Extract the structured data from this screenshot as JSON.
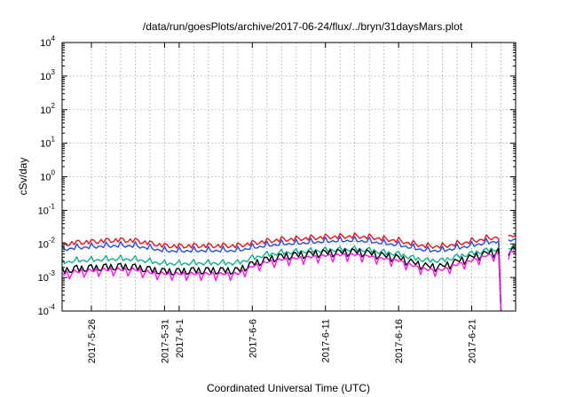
{
  "chart_data": {
    "type": "line",
    "title": "/data/run/goesPlots/archive/2017-06-24/flux/../bryn/31daysMars.plot",
    "xlabel": "Coordinated Universal Time (UTC)",
    "ylabel": "cSv/day",
    "yscale": "log",
    "ylim": [
      0.0001,
      10000
    ],
    "xlim": [
      "2017-05-24",
      "2017-06-24"
    ],
    "grid": true,
    "y_ticks": [
      {
        "value": 10000,
        "base": "10",
        "exp": "4"
      },
      {
        "value": 1000,
        "base": "10",
        "exp": "3"
      },
      {
        "value": 100,
        "base": "10",
        "exp": "2"
      },
      {
        "value": 10,
        "base": "10",
        "exp": "1"
      },
      {
        "value": 1,
        "base": "10",
        "exp": "0"
      },
      {
        "value": 0.1,
        "base": "10",
        "exp": "-1"
      },
      {
        "value": 0.01,
        "base": "10",
        "exp": "-2"
      },
      {
        "value": 0.001,
        "base": "10",
        "exp": "-3"
      },
      {
        "value": 0.0001,
        "base": "10",
        "exp": "-4"
      }
    ],
    "x_ticks": [
      {
        "date": "2017-05-26",
        "label": "2017-5-26"
      },
      {
        "date": "2017-05-31",
        "label": "2017-5-31"
      },
      {
        "date": "2017-06-01",
        "label": "2017-6-1"
      },
      {
        "date": "2017-06-06",
        "label": "2017-6-6"
      },
      {
        "date": "2017-06-11",
        "label": "2017-6-11"
      },
      {
        "date": "2017-06-16",
        "label": "2017-6-16"
      },
      {
        "date": "2017-06-21",
        "label": "2017-6-21"
      }
    ],
    "x_gridlines": [
      "2017-05-26",
      "2017-05-27",
      "2017-05-28",
      "2017-05-29",
      "2017-05-30",
      "2017-05-31",
      "2017-06-01",
      "2017-06-02",
      "2017-06-03",
      "2017-06-04",
      "2017-06-05",
      "2017-06-06",
      "2017-06-07",
      "2017-06-08",
      "2017-06-09",
      "2017-06-10",
      "2017-06-11",
      "2017-06-12",
      "2017-06-13",
      "2017-06-14",
      "2017-06-15",
      "2017-06-16",
      "2017-06-17",
      "2017-06-18",
      "2017-06-19",
      "2017-06-20",
      "2017-06-21",
      "2017-06-22",
      "2017-06-23"
    ],
    "series": [
      {
        "color": "#e8141c",
        "x": [
          "2017-05-24",
          "2017-05-25",
          "2017-05-26",
          "2017-05-27",
          "2017-05-28",
          "2017-05-29",
          "2017-05-30",
          "2017-05-31",
          "2017-06-01",
          "2017-06-02",
          "2017-06-03",
          "2017-06-04",
          "2017-06-05",
          "2017-06-06",
          "2017-06-07",
          "2017-06-08",
          "2017-06-09",
          "2017-06-10",
          "2017-06-11",
          "2017-06-12",
          "2017-06-13",
          "2017-06-14",
          "2017-06-15",
          "2017-06-16",
          "2017-06-17",
          "2017-06-18",
          "2017-06-19",
          "2017-06-20",
          "2017-06-21",
          "2017-06-22",
          "2017-06-23",
          "2017-06-24"
        ],
        "y": [
          0.0095,
          0.011,
          0.0115,
          0.0125,
          0.013,
          0.0125,
          0.0105,
          0.0088,
          0.0085,
          0.0088,
          0.0088,
          0.0088,
          0.0088,
          0.0105,
          0.012,
          0.0135,
          0.014,
          0.015,
          0.016,
          0.0165,
          0.017,
          0.016,
          0.014,
          0.0125,
          0.01,
          0.0085,
          0.0085,
          0.01,
          0.012,
          0.0145,
          0.0165,
          0.0185
        ]
      },
      {
        "color": "#1f4fe0",
        "x": [
          "2017-05-24",
          "2017-05-25",
          "2017-05-26",
          "2017-05-27",
          "2017-05-28",
          "2017-05-29",
          "2017-05-30",
          "2017-05-31",
          "2017-06-01",
          "2017-06-02",
          "2017-06-03",
          "2017-06-04",
          "2017-06-05",
          "2017-06-06",
          "2017-06-07",
          "2017-06-08",
          "2017-06-09",
          "2017-06-10",
          "2017-06-11",
          "2017-06-12",
          "2017-06-13",
          "2017-06-14",
          "2017-06-15",
          "2017-06-16",
          "2017-06-17",
          "2017-06-18",
          "2017-06-19",
          "2017-06-20",
          "2017-06-21",
          "2017-06-22",
          "2017-06-23",
          "2017-06-24"
        ],
        "y": [
          0.0068,
          0.0078,
          0.0082,
          0.0088,
          0.009,
          0.0088,
          0.0075,
          0.0063,
          0.0062,
          0.0064,
          0.0064,
          0.0064,
          0.0064,
          0.0078,
          0.009,
          0.01,
          0.0105,
          0.0112,
          0.012,
          0.0125,
          0.0128,
          0.012,
          0.0105,
          0.0094,
          0.0076,
          0.0064,
          0.0064,
          0.0076,
          0.009,
          0.011,
          0.0125,
          0.014
        ]
      },
      {
        "color": "#10b090",
        "x": [
          "2017-05-24",
          "2017-05-25",
          "2017-05-26",
          "2017-05-27",
          "2017-05-28",
          "2017-05-29",
          "2017-05-30",
          "2017-05-31",
          "2017-06-01",
          "2017-06-02",
          "2017-06-03",
          "2017-06-04",
          "2017-06-05",
          "2017-06-06",
          "2017-06-07",
          "2017-06-08",
          "2017-06-09",
          "2017-06-10",
          "2017-06-11",
          "2017-06-12",
          "2017-06-13",
          "2017-06-14",
          "2017-06-15",
          "2017-06-16",
          "2017-06-17",
          "2017-06-18",
          "2017-06-19",
          "2017-06-20",
          "2017-06-21",
          "2017-06-22",
          "2017-06-23",
          "2017-06-24"
        ],
        "y": [
          0.0028,
          0.0032,
          0.0033,
          0.0035,
          0.0036,
          0.0035,
          0.003,
          0.0026,
          0.0026,
          0.0027,
          0.0027,
          0.0027,
          0.0027,
          0.0038,
          0.0048,
          0.0055,
          0.0058,
          0.0062,
          0.0066,
          0.0068,
          0.007,
          0.0065,
          0.0056,
          0.005,
          0.0038,
          0.0032,
          0.0032,
          0.0042,
          0.0052,
          0.0064,
          0.0074,
          0.0085
        ]
      },
      {
        "color": "#000000",
        "x": [
          "2017-05-24",
          "2017-05-25",
          "2017-05-26",
          "2017-05-27",
          "2017-05-28",
          "2017-05-29",
          "2017-05-30",
          "2017-05-31",
          "2017-06-01",
          "2017-06-02",
          "2017-06-03",
          "2017-06-04",
          "2017-06-05",
          "2017-06-06",
          "2017-06-07",
          "2017-06-08",
          "2017-06-09",
          "2017-06-10",
          "2017-06-11",
          "2017-06-12",
          "2017-06-13",
          "2017-06-14",
          "2017-06-15",
          "2017-06-16",
          "2017-06-17",
          "2017-06-18",
          "2017-06-19",
          "2017-06-20",
          "2017-06-21",
          "2017-06-22",
          "2017-06-23",
          "2017-06-24"
        ],
        "y": [
          0.0016,
          0.0018,
          0.0019,
          0.002,
          0.0021,
          0.002,
          0.0017,
          0.0015,
          0.0015,
          0.0016,
          0.0016,
          0.0016,
          0.0016,
          0.0025,
          0.0034,
          0.0042,
          0.0046,
          0.005,
          0.0054,
          0.0056,
          0.0058,
          0.0053,
          0.0044,
          0.0038,
          0.0027,
          0.0021,
          0.0021,
          0.003,
          0.004,
          0.0052,
          0.006,
          0.0068
        ]
      },
      {
        "color": "#ff14f0",
        "x": [
          "2017-05-24",
          "2017-05-25",
          "2017-05-26",
          "2017-05-27",
          "2017-05-28",
          "2017-05-29",
          "2017-05-30",
          "2017-05-31",
          "2017-06-01",
          "2017-06-02",
          "2017-06-03",
          "2017-06-04",
          "2017-06-05",
          "2017-06-06",
          "2017-06-07",
          "2017-06-08",
          "2017-06-09",
          "2017-06-10",
          "2017-06-11",
          "2017-06-12",
          "2017-06-13",
          "2017-06-14",
          "2017-06-15",
          "2017-06-16",
          "2017-06-17",
          "2017-06-18",
          "2017-06-19",
          "2017-06-20",
          "2017-06-21",
          "2017-06-22",
          "2017-06-23",
          "2017-06-24"
        ],
        "y": [
          0.0012,
          0.0014,
          0.0015,
          0.0016,
          0.0016,
          0.0016,
          0.0013,
          0.0012,
          0.0012,
          0.0012,
          0.0012,
          0.0012,
          0.0012,
          0.002,
          0.0027,
          0.0032,
          0.0035,
          0.0038,
          0.0042,
          0.0044,
          0.0045,
          0.004,
          0.0034,
          0.003,
          0.0021,
          0.0016,
          0.0016,
          0.0023,
          0.003,
          0.0042,
          0.0048,
          0.0055
        ]
      }
    ]
  }
}
